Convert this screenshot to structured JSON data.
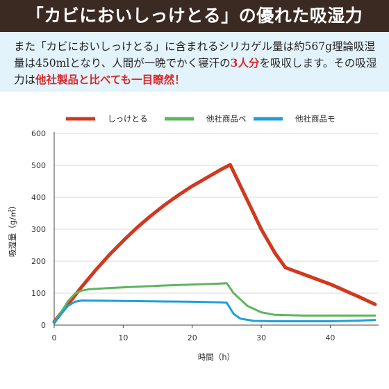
{
  "header": {
    "title": "「カビにおいしっけとる」の優れた吸湿力"
  },
  "description": {
    "part1": "また「カビにおいしっけとる」に含まれるシリカゲル量は約567g理論吸湿量は450mlとなり、人間が一晩でかく寝汗の",
    "highlight1": "3人分",
    "part2": "を吸収します。その吸湿力は",
    "highlight2": "他社製品と比べても一目瞭然！"
  },
  "colors": {
    "title_bg": "#3b2a22",
    "desc_bg": "#e3f3fb",
    "highlight": "#d7282d"
  },
  "chart_data": {
    "type": "line",
    "xlabel": "時間（h）",
    "ylabel": "吸湿量（g/㎡）",
    "xlim": [
      0,
      47
    ],
    "ylim": [
      0,
      600
    ],
    "x_ticks": [
      "0",
      "10",
      "20",
      "30",
      "40"
    ],
    "y_ticks": [
      "0",
      "100",
      "200",
      "300",
      "400",
      "500",
      "600"
    ],
    "grid": "horizontal",
    "legend_position": "top",
    "series": [
      {
        "name": "しっけとる",
        "color": "#d0391f",
        "points": [
          [
            0,
            10
          ],
          [
            2,
            65
          ],
          [
            4,
            120
          ],
          [
            6,
            172
          ],
          [
            8,
            220
          ],
          [
            10,
            264
          ],
          [
            12,
            305
          ],
          [
            14,
            342
          ],
          [
            16,
            376
          ],
          [
            18,
            407
          ],
          [
            20,
            435
          ],
          [
            22,
            460
          ],
          [
            24,
            485
          ],
          [
            25.5,
            502
          ],
          [
            28,
            390
          ],
          [
            30,
            300
          ],
          [
            32,
            225
          ],
          [
            33.5,
            180
          ],
          [
            36,
            160
          ],
          [
            40,
            128
          ],
          [
            44,
            90
          ],
          [
            46.5,
            65
          ]
        ]
      },
      {
        "name": "他社商品ベ",
        "color": "#5cb65c",
        "points": [
          [
            0,
            8
          ],
          [
            1,
            40
          ],
          [
            2,
            75
          ],
          [
            3,
            98
          ],
          [
            4,
            108
          ],
          [
            5,
            112
          ],
          [
            8,
            116
          ],
          [
            12,
            120
          ],
          [
            16,
            124
          ],
          [
            20,
            127
          ],
          [
            24,
            130
          ],
          [
            25,
            131
          ],
          [
            26,
            100
          ],
          [
            28,
            60
          ],
          [
            30,
            40
          ],
          [
            32,
            32
          ],
          [
            36,
            30
          ],
          [
            40,
            30
          ],
          [
            46.5,
            30
          ]
        ]
      },
      {
        "name": "他社商品モ",
        "color": "#1e9fdc",
        "points": [
          [
            0,
            5
          ],
          [
            1,
            35
          ],
          [
            2,
            60
          ],
          [
            3,
            73
          ],
          [
            4,
            77
          ],
          [
            8,
            76
          ],
          [
            12,
            75
          ],
          [
            16,
            74
          ],
          [
            20,
            73
          ],
          [
            24,
            71
          ],
          [
            25,
            70
          ],
          [
            26,
            35
          ],
          [
            27,
            20
          ],
          [
            29,
            13
          ],
          [
            32,
            12
          ],
          [
            36,
            12
          ],
          [
            40,
            12
          ],
          [
            44,
            14
          ],
          [
            46.5,
            16
          ]
        ]
      }
    ]
  }
}
